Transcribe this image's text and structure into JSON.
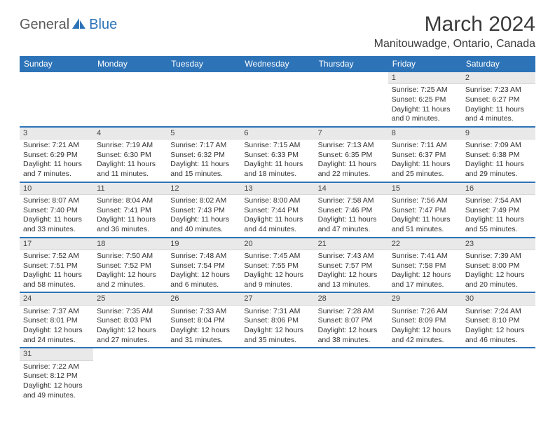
{
  "logo": {
    "part1": "General",
    "part2": "Blue"
  },
  "title": "March 2024",
  "location": "Manitouwadge, Ontario, Canada",
  "header_bg": "#2d73b8",
  "header_fg": "#ffffff",
  "daynum_bg": "#e9e9e9",
  "divider_color": "#2d73b8",
  "weekdays": [
    "Sunday",
    "Monday",
    "Tuesday",
    "Wednesday",
    "Thursday",
    "Friday",
    "Saturday"
  ],
  "weeks": [
    [
      null,
      null,
      null,
      null,
      null,
      {
        "n": "1",
        "sr": "Sunrise: 7:25 AM",
        "ss": "Sunset: 6:25 PM",
        "dl1": "Daylight: 11 hours",
        "dl2": "and 0 minutes."
      },
      {
        "n": "2",
        "sr": "Sunrise: 7:23 AM",
        "ss": "Sunset: 6:27 PM",
        "dl1": "Daylight: 11 hours",
        "dl2": "and 4 minutes."
      }
    ],
    [
      {
        "n": "3",
        "sr": "Sunrise: 7:21 AM",
        "ss": "Sunset: 6:29 PM",
        "dl1": "Daylight: 11 hours",
        "dl2": "and 7 minutes."
      },
      {
        "n": "4",
        "sr": "Sunrise: 7:19 AM",
        "ss": "Sunset: 6:30 PM",
        "dl1": "Daylight: 11 hours",
        "dl2": "and 11 minutes."
      },
      {
        "n": "5",
        "sr": "Sunrise: 7:17 AM",
        "ss": "Sunset: 6:32 PM",
        "dl1": "Daylight: 11 hours",
        "dl2": "and 15 minutes."
      },
      {
        "n": "6",
        "sr": "Sunrise: 7:15 AM",
        "ss": "Sunset: 6:33 PM",
        "dl1": "Daylight: 11 hours",
        "dl2": "and 18 minutes."
      },
      {
        "n": "7",
        "sr": "Sunrise: 7:13 AM",
        "ss": "Sunset: 6:35 PM",
        "dl1": "Daylight: 11 hours",
        "dl2": "and 22 minutes."
      },
      {
        "n": "8",
        "sr": "Sunrise: 7:11 AM",
        "ss": "Sunset: 6:37 PM",
        "dl1": "Daylight: 11 hours",
        "dl2": "and 25 minutes."
      },
      {
        "n": "9",
        "sr": "Sunrise: 7:09 AM",
        "ss": "Sunset: 6:38 PM",
        "dl1": "Daylight: 11 hours",
        "dl2": "and 29 minutes."
      }
    ],
    [
      {
        "n": "10",
        "sr": "Sunrise: 8:07 AM",
        "ss": "Sunset: 7:40 PM",
        "dl1": "Daylight: 11 hours",
        "dl2": "and 33 minutes."
      },
      {
        "n": "11",
        "sr": "Sunrise: 8:04 AM",
        "ss": "Sunset: 7:41 PM",
        "dl1": "Daylight: 11 hours",
        "dl2": "and 36 minutes."
      },
      {
        "n": "12",
        "sr": "Sunrise: 8:02 AM",
        "ss": "Sunset: 7:43 PM",
        "dl1": "Daylight: 11 hours",
        "dl2": "and 40 minutes."
      },
      {
        "n": "13",
        "sr": "Sunrise: 8:00 AM",
        "ss": "Sunset: 7:44 PM",
        "dl1": "Daylight: 11 hours",
        "dl2": "and 44 minutes."
      },
      {
        "n": "14",
        "sr": "Sunrise: 7:58 AM",
        "ss": "Sunset: 7:46 PM",
        "dl1": "Daylight: 11 hours",
        "dl2": "and 47 minutes."
      },
      {
        "n": "15",
        "sr": "Sunrise: 7:56 AM",
        "ss": "Sunset: 7:47 PM",
        "dl1": "Daylight: 11 hours",
        "dl2": "and 51 minutes."
      },
      {
        "n": "16",
        "sr": "Sunrise: 7:54 AM",
        "ss": "Sunset: 7:49 PM",
        "dl1": "Daylight: 11 hours",
        "dl2": "and 55 minutes."
      }
    ],
    [
      {
        "n": "17",
        "sr": "Sunrise: 7:52 AM",
        "ss": "Sunset: 7:51 PM",
        "dl1": "Daylight: 11 hours",
        "dl2": "and 58 minutes."
      },
      {
        "n": "18",
        "sr": "Sunrise: 7:50 AM",
        "ss": "Sunset: 7:52 PM",
        "dl1": "Daylight: 12 hours",
        "dl2": "and 2 minutes."
      },
      {
        "n": "19",
        "sr": "Sunrise: 7:48 AM",
        "ss": "Sunset: 7:54 PM",
        "dl1": "Daylight: 12 hours",
        "dl2": "and 6 minutes."
      },
      {
        "n": "20",
        "sr": "Sunrise: 7:45 AM",
        "ss": "Sunset: 7:55 PM",
        "dl1": "Daylight: 12 hours",
        "dl2": "and 9 minutes."
      },
      {
        "n": "21",
        "sr": "Sunrise: 7:43 AM",
        "ss": "Sunset: 7:57 PM",
        "dl1": "Daylight: 12 hours",
        "dl2": "and 13 minutes."
      },
      {
        "n": "22",
        "sr": "Sunrise: 7:41 AM",
        "ss": "Sunset: 7:58 PM",
        "dl1": "Daylight: 12 hours",
        "dl2": "and 17 minutes."
      },
      {
        "n": "23",
        "sr": "Sunrise: 7:39 AM",
        "ss": "Sunset: 8:00 PM",
        "dl1": "Daylight: 12 hours",
        "dl2": "and 20 minutes."
      }
    ],
    [
      {
        "n": "24",
        "sr": "Sunrise: 7:37 AM",
        "ss": "Sunset: 8:01 PM",
        "dl1": "Daylight: 12 hours",
        "dl2": "and 24 minutes."
      },
      {
        "n": "25",
        "sr": "Sunrise: 7:35 AM",
        "ss": "Sunset: 8:03 PM",
        "dl1": "Daylight: 12 hours",
        "dl2": "and 27 minutes."
      },
      {
        "n": "26",
        "sr": "Sunrise: 7:33 AM",
        "ss": "Sunset: 8:04 PM",
        "dl1": "Daylight: 12 hours",
        "dl2": "and 31 minutes."
      },
      {
        "n": "27",
        "sr": "Sunrise: 7:31 AM",
        "ss": "Sunset: 8:06 PM",
        "dl1": "Daylight: 12 hours",
        "dl2": "and 35 minutes."
      },
      {
        "n": "28",
        "sr": "Sunrise: 7:28 AM",
        "ss": "Sunset: 8:07 PM",
        "dl1": "Daylight: 12 hours",
        "dl2": "and 38 minutes."
      },
      {
        "n": "29",
        "sr": "Sunrise: 7:26 AM",
        "ss": "Sunset: 8:09 PM",
        "dl1": "Daylight: 12 hours",
        "dl2": "and 42 minutes."
      },
      {
        "n": "30",
        "sr": "Sunrise: 7:24 AM",
        "ss": "Sunset: 8:10 PM",
        "dl1": "Daylight: 12 hours",
        "dl2": "and 46 minutes."
      }
    ],
    [
      {
        "n": "31",
        "sr": "Sunrise: 7:22 AM",
        "ss": "Sunset: 8:12 PM",
        "dl1": "Daylight: 12 hours",
        "dl2": "and 49 minutes."
      },
      null,
      null,
      null,
      null,
      null,
      null
    ]
  ]
}
